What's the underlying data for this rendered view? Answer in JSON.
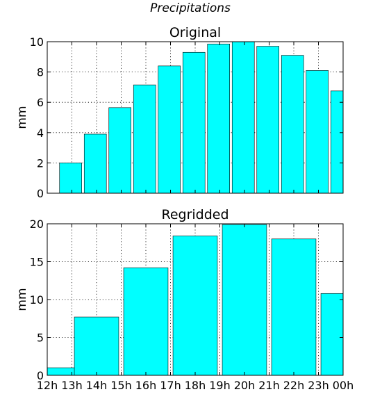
{
  "figure": {
    "suptitle": "Precipitations"
  },
  "chart_data": [
    {
      "type": "bar",
      "title": "Original",
      "ylabel": "mm",
      "ylim": [
        0,
        10
      ],
      "yticks": [
        0,
        2,
        4,
        6,
        8,
        10
      ],
      "xlim": [
        12,
        24
      ],
      "xticks": [
        13,
        14,
        15,
        16,
        17,
        18,
        19,
        20,
        21,
        22,
        23
      ],
      "x_ticklabels_visible": false,
      "bar_width_hours": 0.9,
      "x_start_hours": [
        12.5,
        13.5,
        14.5,
        15.5,
        16.5,
        17.5,
        18.5,
        19.5,
        20.5,
        21.5,
        22.5,
        23.5
      ],
      "values": [
        2.0,
        3.9,
        5.65,
        7.15,
        8.4,
        9.3,
        9.85,
        10.0,
        9.7,
        9.1,
        8.1,
        6.75
      ],
      "grid": true,
      "color": "#00ffff"
    },
    {
      "type": "bar",
      "title": "Regridded",
      "ylabel": "mm",
      "ylim": [
        0,
        20
      ],
      "yticks": [
        0,
        5,
        10,
        15,
        20
      ],
      "xlim": [
        12,
        24
      ],
      "xticks": [
        12,
        13,
        14,
        15,
        16,
        17,
        18,
        19,
        20,
        21,
        22,
        23,
        24
      ],
      "xticklabels": [
        "12h",
        "13h",
        "14h",
        "15h",
        "16h",
        "17h",
        "18h",
        "19h",
        "20h",
        "21h",
        "22h",
        "23h",
        "00h"
      ],
      "bar_width_hours": 1.8,
      "x_start_hours": [
        11.5,
        13.1,
        15.1,
        17.1,
        19.1,
        21.1,
        23.1
      ],
      "values": [
        1.0,
        7.7,
        14.2,
        18.4,
        19.9,
        18.0,
        10.8
      ],
      "grid": true,
      "color": "#00ffff"
    }
  ]
}
